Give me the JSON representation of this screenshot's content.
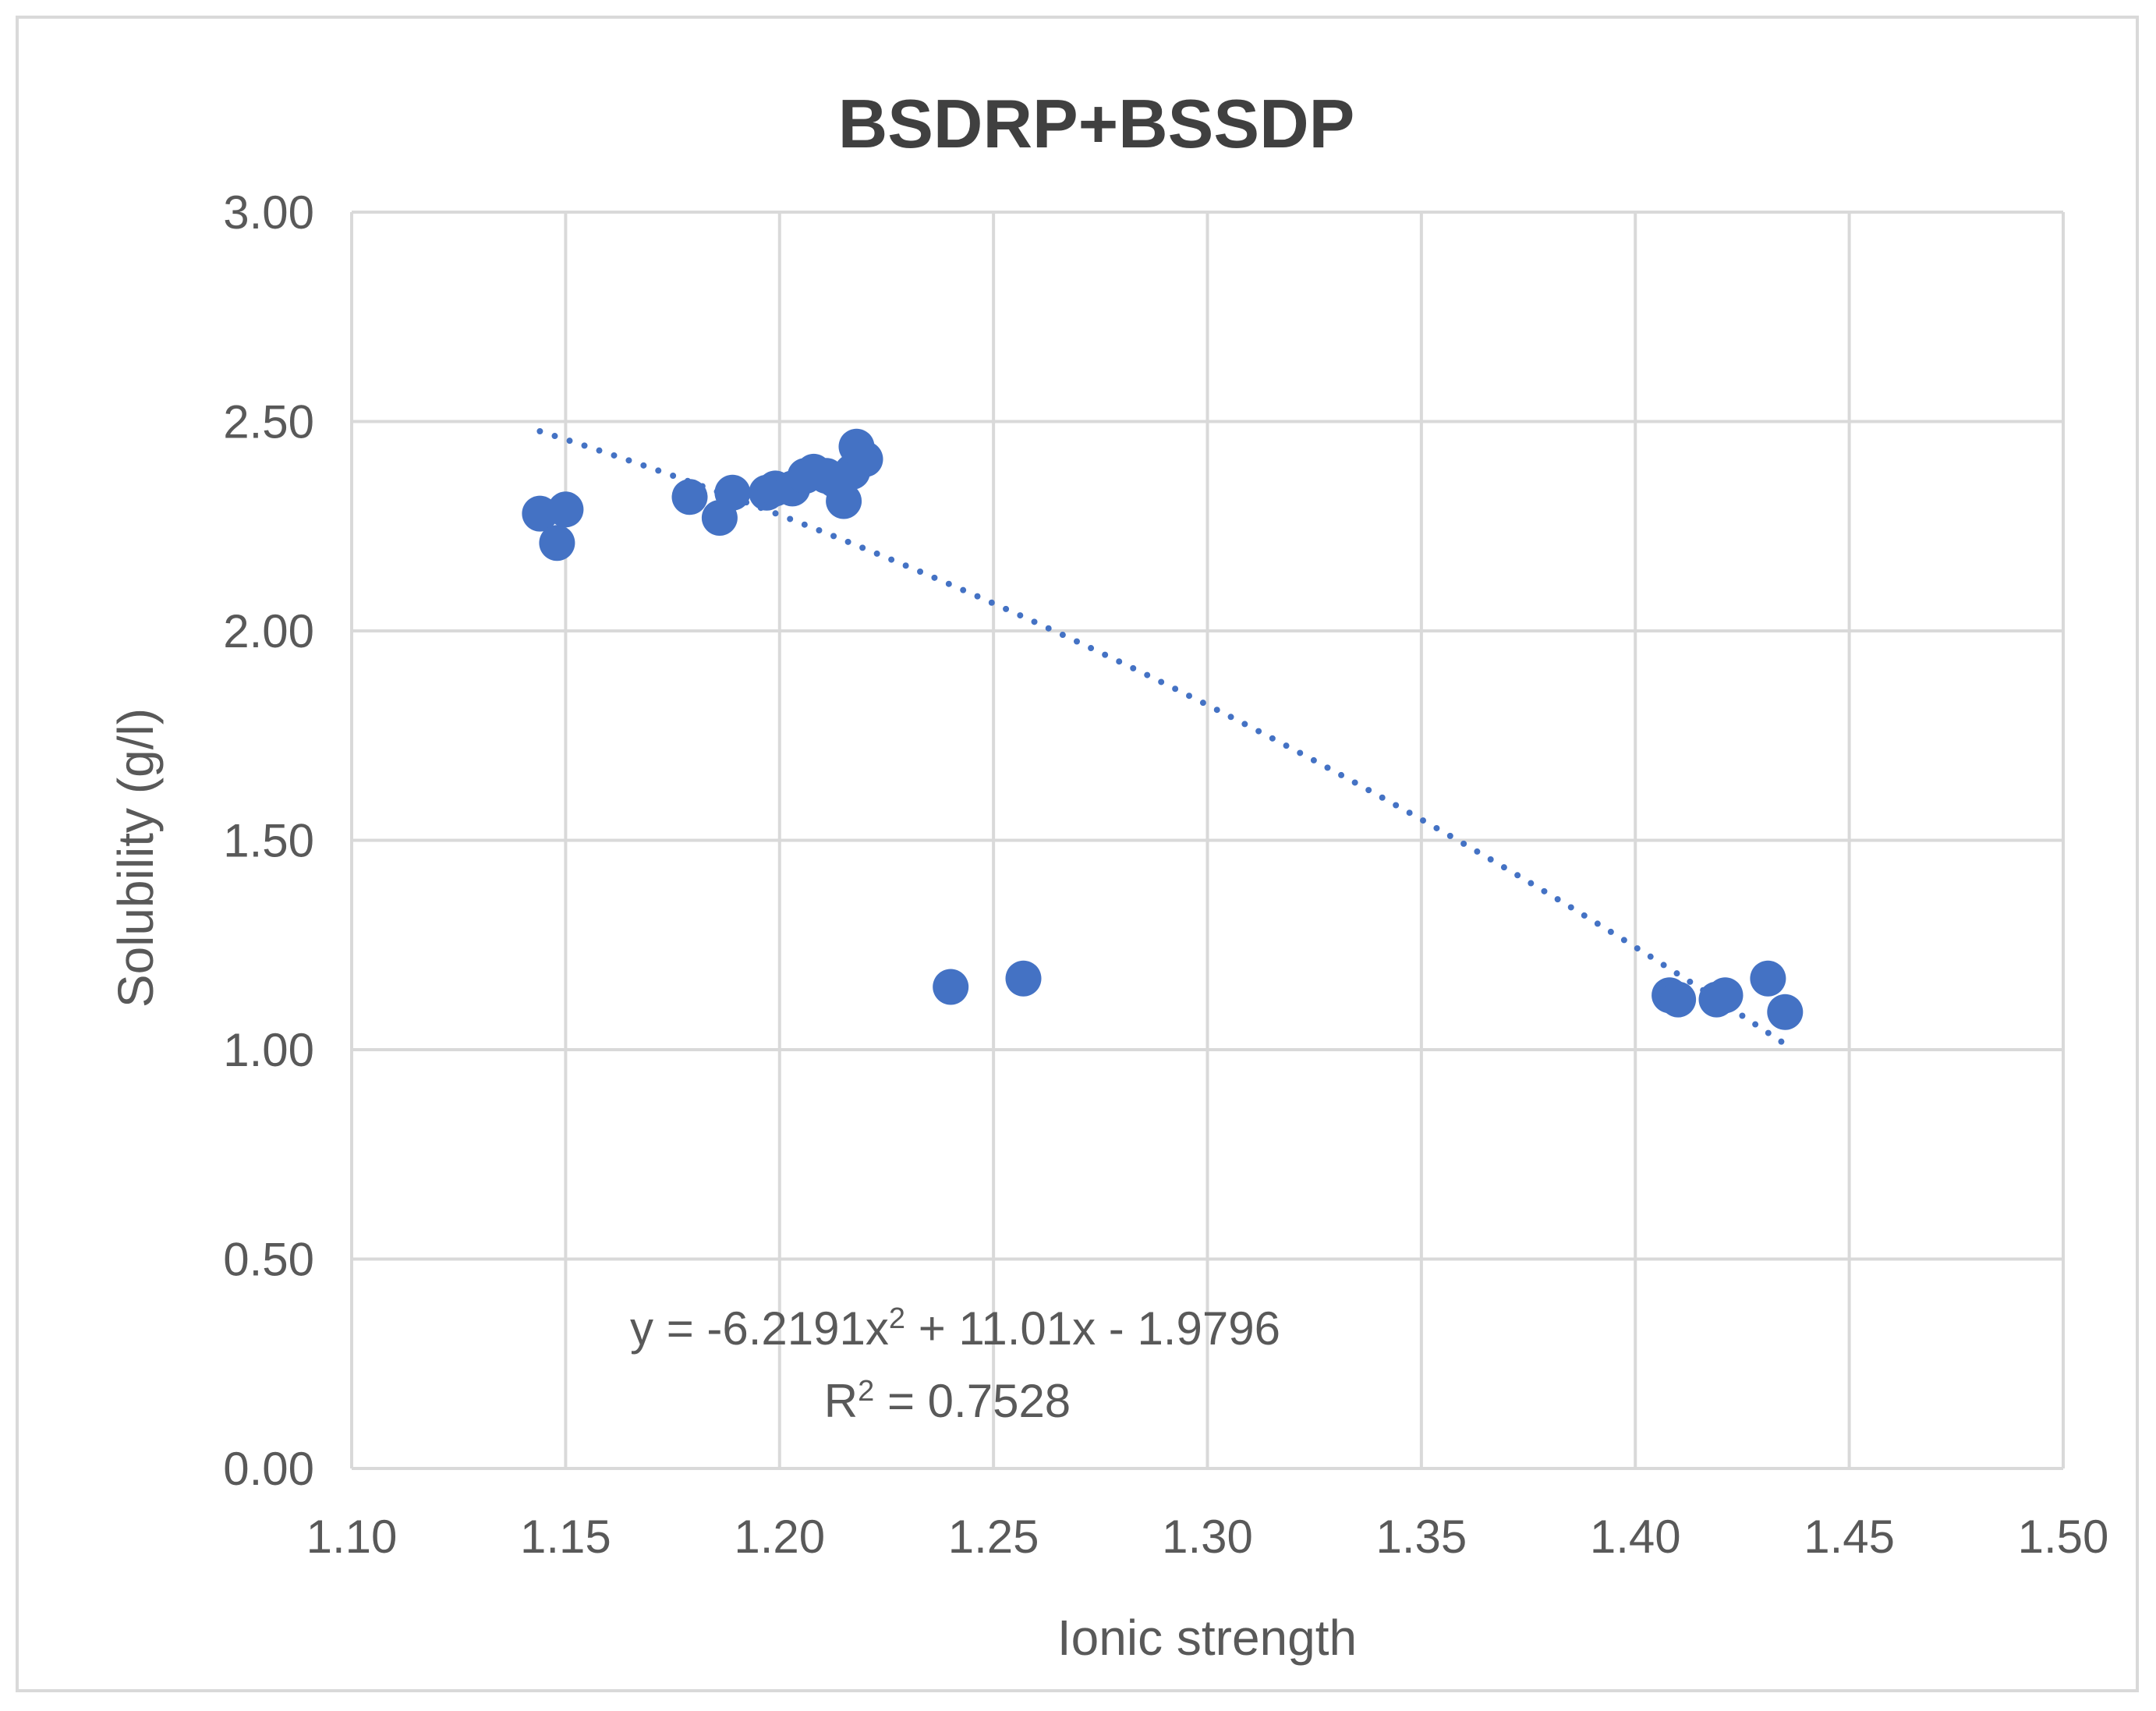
{
  "chart_data": {
    "type": "scatter",
    "title": "BSDRP+BSSDP",
    "xlabel": "Ionic strength",
    "ylabel": "Solubility (g/l)",
    "xlim": [
      1.1,
      1.5
    ],
    "ylim": [
      0.0,
      3.0
    ],
    "x_ticks": [
      "1.10",
      "1.15",
      "1.20",
      "1.25",
      "1.30",
      "1.35",
      "1.40",
      "1.45",
      "1.50"
    ],
    "y_ticks": [
      "0.00",
      "0.50",
      "1.00",
      "1.50",
      "2.00",
      "2.50",
      "3.00"
    ],
    "grid": true,
    "legend": "none",
    "colors": {
      "points": "#4472c4",
      "trendline": "#4472c4",
      "grid": "#d9d9d9",
      "text": "#595959"
    },
    "series": [
      {
        "name": "BSDRP+BSSDP",
        "points": [
          [
            1.144,
            2.28
          ],
          [
            1.148,
            2.21
          ],
          [
            1.15,
            2.29
          ],
          [
            1.179,
            2.32
          ],
          [
            1.186,
            2.27
          ],
          [
            1.189,
            2.33
          ],
          [
            1.197,
            2.33
          ],
          [
            1.199,
            2.34
          ],
          [
            1.203,
            2.34
          ],
          [
            1.206,
            2.37
          ],
          [
            1.208,
            2.38
          ],
          [
            1.211,
            2.37
          ],
          [
            1.213,
            2.36
          ],
          [
            1.215,
            2.31
          ],
          [
            1.217,
            2.38
          ],
          [
            1.218,
            2.44
          ],
          [
            1.22,
            2.41
          ],
          [
            1.24,
            1.15
          ],
          [
            1.257,
            1.17
          ],
          [
            1.408,
            1.13
          ],
          [
            1.41,
            1.12
          ],
          [
            1.419,
            1.12
          ],
          [
            1.421,
            1.13
          ],
          [
            1.431,
            1.17
          ],
          [
            1.435,
            1.09
          ]
        ]
      }
    ],
    "trendline": {
      "type": "polynomial",
      "order": 2,
      "coefficients": {
        "a": -6.2191,
        "b": 11.01,
        "c": -1.9796
      },
      "x_range": [
        1.144,
        1.435
      ],
      "style": "dotted"
    },
    "annotations": {
      "equation_prefix": "y = -6.2191x",
      "equation_sup": "2",
      "equation_suffix": " + 11.01x - 1.9796",
      "r2_prefix": "R",
      "r2_sup": "2",
      "r2_suffix": " = 0.7528"
    }
  }
}
